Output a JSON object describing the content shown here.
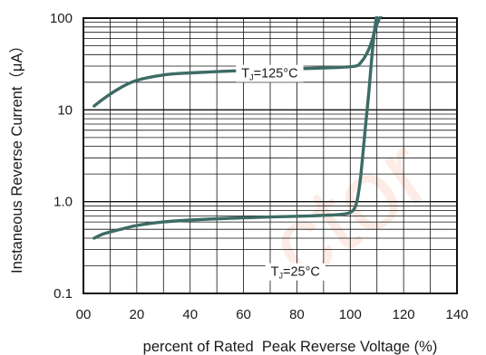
{
  "chart_data": {
    "type": "line",
    "xlabel": "percent of Rated  Peak Reverse Voltage (%)",
    "ylabel": "Instaneous Reverse Current（μA）",
    "x_ticks": [
      "00",
      "20",
      "40",
      "60",
      "80",
      "100",
      "120",
      "140"
    ],
    "x_tick_values": [
      0,
      20,
      40,
      60,
      80,
      100,
      120,
      140
    ],
    "y_ticks": [
      "0.1",
      "1.0",
      "10",
      "100"
    ],
    "y_tick_values": [
      0.1,
      1,
      10,
      100
    ],
    "xlim": [
      0,
      140
    ],
    "ylim": [
      0.1,
      100
    ],
    "y_scale": "log",
    "grid": true,
    "line_color": "#3d6b65",
    "series": [
      {
        "label_main": "T",
        "label_sub": "J",
        "label_rest": "=125°C",
        "x": [
          4,
          8,
          14,
          20,
          30,
          40,
          55,
          70,
          85,
          95,
          102,
          104,
          106,
          108,
          109,
          110,
          111,
          112
        ],
        "y": [
          11,
          13.5,
          17.5,
          21,
          24,
          25.3,
          26.5,
          27.5,
          28.3,
          29,
          30,
          33,
          40,
          55,
          70,
          85,
          100,
          110
        ]
      },
      {
        "label_main": "T",
        "label_sub": "J",
        "label_rest": "=25°C",
        "x": [
          4,
          8,
          14,
          20,
          30,
          40,
          55,
          70,
          85,
          95,
          100,
          102,
          103,
          104,
          105,
          106,
          107,
          108,
          109,
          110
        ],
        "y": [
          0.4,
          0.45,
          0.5,
          0.55,
          0.6,
          0.63,
          0.66,
          0.68,
          0.7,
          0.72,
          0.76,
          0.9,
          1.2,
          2.0,
          4.0,
          8.0,
          16,
          35,
          70,
          110
        ]
      }
    ]
  },
  "watermark": "ctor"
}
